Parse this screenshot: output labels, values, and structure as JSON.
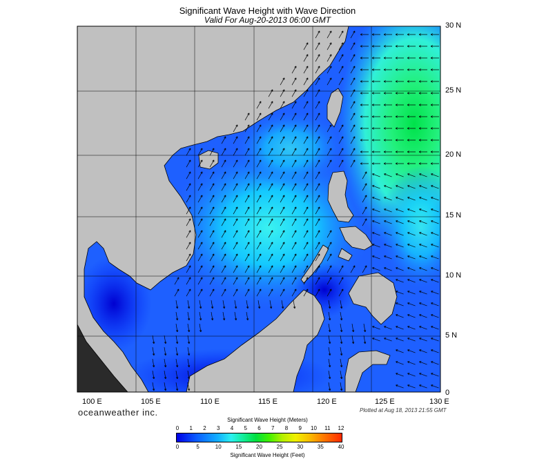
{
  "title": "Significant Wave Height with Wave Direction",
  "subtitle": "Valid For Aug-20-2013 06:00 GMT",
  "lon_labels": [
    "100 E",
    "105 E",
    "110 E",
    "115 E",
    "120 E",
    "125 E",
    "130 E"
  ],
  "lat_labels": [
    "30 N",
    "25 N",
    "20 N",
    "15 N",
    "10 N",
    "5 N",
    "0"
  ],
  "branding": "oceanweather inc.",
  "plotted_note": "Plotted at Aug 18, 2013 21:55 GMT",
  "colorbar": {
    "title_meters": "Significant Wave Height (Meters)",
    "title_feet": "Significant Wave Height (Feet)",
    "meter_ticks": [
      "0",
      "1",
      "2",
      "3",
      "4",
      "5",
      "6",
      "7",
      "8",
      "9",
      "10",
      "11",
      "12"
    ],
    "feet_ticks": [
      "0",
      "5",
      "10",
      "15",
      "20",
      "25",
      "30",
      "35",
      "40"
    ]
  },
  "colors": {
    "land": "#c0c0c0",
    "deep_blue": "#0000e6",
    "mid_blue": "#1e64ff",
    "cyan": "#38f0f0",
    "green": "#28f060"
  }
}
